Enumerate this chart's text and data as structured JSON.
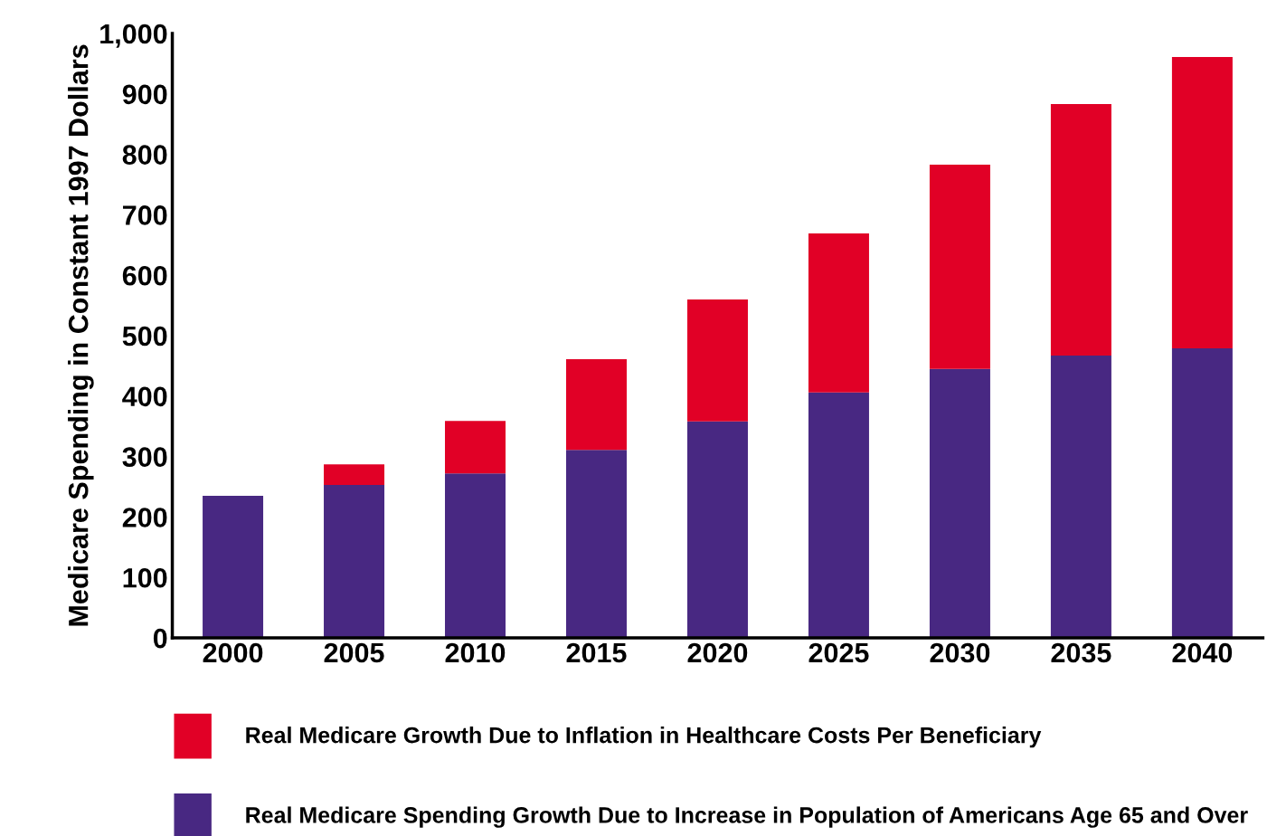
{
  "chart_data": {
    "type": "bar",
    "ylabel": "Medicare Spending in Constant 1997 Dollars",
    "categories": [
      "2000",
      "2005",
      "2010",
      "2015",
      "2020",
      "2025",
      "2030",
      "2035",
      "2040"
    ],
    "stacked": true,
    "series": [
      {
        "name": "Real Medicare Spending Growth Due to Increase in Population of Americans Age 65 and Over",
        "color": "#482882",
        "values": [
          235,
          253,
          272,
          311,
          358,
          406,
          445,
          467,
          479
        ]
      },
      {
        "name": "Real Medicare Growth Due to Inflation in Healthcare Costs Per Beneficiary",
        "color": "#e10026",
        "values": [
          0,
          34,
          87,
          150,
          202,
          263,
          338,
          416,
          482
        ]
      }
    ],
    "ylim": [
      0,
      1000
    ],
    "yticks": [
      0,
      100,
      200,
      300,
      400,
      500,
      600,
      700,
      800,
      900,
      {
        "value": 1000,
        "label": "1,000"
      }
    ],
    "grid": false,
    "legend": "bottom"
  }
}
